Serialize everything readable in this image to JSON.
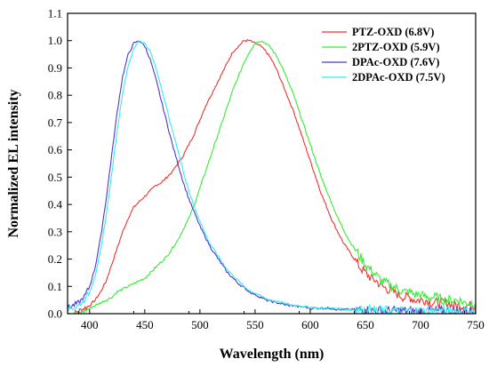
{
  "chart_data": {
    "type": "line",
    "title": "",
    "xlabel": "Wavelength (nm)",
    "ylabel": "Normalized EL intensity",
    "xlim": [
      380,
      750
    ],
    "ylim": [
      0.0,
      1.1
    ],
    "xticks": [
      400,
      450,
      500,
      550,
      600,
      650,
      700,
      750
    ],
    "yticks": [
      0.0,
      0.1,
      0.2,
      0.3,
      0.4,
      0.5,
      0.6,
      0.7,
      0.8,
      0.9,
      1.0,
      1.1
    ],
    "xtick_labels": [
      "400",
      "450",
      "500",
      "550",
      "600",
      "650",
      "700",
      "750"
    ],
    "ytick_labels": [
      "0.0",
      "0.1",
      "0.2",
      "0.3",
      "0.4",
      "0.5",
      "0.6",
      "0.7",
      "0.8",
      "0.9",
      "1.0",
      "1.1"
    ],
    "grid": false,
    "legend_position": "top-right",
    "series": [
      {
        "name": "PTZ-OXD (6.8V)",
        "color": "#ee3333",
        "x": [
          380,
          385,
          390,
          395,
          400,
          405,
          410,
          415,
          420,
          425,
          430,
          435,
          440,
          445,
          450,
          455,
          460,
          465,
          470,
          475,
          480,
          485,
          490,
          495,
          500,
          505,
          510,
          515,
          520,
          525,
          530,
          535,
          540,
          545,
          550,
          555,
          560,
          565,
          570,
          575,
          580,
          585,
          590,
          595,
          600,
          605,
          610,
          615,
          620,
          625,
          630,
          635,
          640,
          645,
          650,
          655,
          660,
          665,
          670,
          675,
          680,
          685,
          690,
          695,
          700,
          705,
          710,
          715,
          720,
          725,
          730,
          735,
          740,
          745,
          750
        ],
        "y": [
          0.0,
          0.0,
          0.01,
          0.02,
          0.03,
          0.05,
          0.08,
          0.12,
          0.18,
          0.24,
          0.3,
          0.35,
          0.39,
          0.41,
          0.43,
          0.45,
          0.47,
          0.48,
          0.5,
          0.52,
          0.55,
          0.58,
          0.62,
          0.66,
          0.71,
          0.76,
          0.8,
          0.84,
          0.88,
          0.92,
          0.96,
          0.98,
          1.0,
          1.0,
          0.99,
          0.98,
          0.96,
          0.93,
          0.89,
          0.84,
          0.79,
          0.74,
          0.68,
          0.62,
          0.56,
          0.5,
          0.44,
          0.39,
          0.34,
          0.3,
          0.26,
          0.23,
          0.2,
          0.17,
          0.15,
          0.13,
          0.12,
          0.1,
          0.09,
          0.08,
          0.07,
          0.06,
          0.06,
          0.05,
          0.05,
          0.05,
          0.04,
          0.04,
          0.04,
          0.04,
          0.03,
          0.03,
          0.03,
          0.03,
          0.03
        ]
      },
      {
        "name": "2PTZ-OXD (5.9V)",
        "color": "#33ee33",
        "x": [
          380,
          385,
          390,
          395,
          400,
          405,
          410,
          415,
          420,
          425,
          430,
          435,
          440,
          445,
          450,
          455,
          460,
          465,
          470,
          475,
          480,
          485,
          490,
          495,
          500,
          505,
          510,
          515,
          520,
          525,
          530,
          535,
          540,
          545,
          550,
          555,
          560,
          565,
          570,
          575,
          580,
          585,
          590,
          595,
          600,
          605,
          610,
          615,
          620,
          625,
          630,
          635,
          640,
          645,
          650,
          655,
          660,
          665,
          670,
          675,
          680,
          685,
          690,
          695,
          700,
          705,
          710,
          715,
          720,
          725,
          730,
          735,
          740,
          745,
          750
        ],
        "y": [
          0.0,
          0.0,
          0.0,
          0.01,
          0.02,
          0.03,
          0.04,
          0.05,
          0.06,
          0.08,
          0.09,
          0.1,
          0.11,
          0.12,
          0.13,
          0.15,
          0.17,
          0.19,
          0.21,
          0.24,
          0.27,
          0.31,
          0.35,
          0.4,
          0.46,
          0.52,
          0.58,
          0.64,
          0.7,
          0.76,
          0.82,
          0.87,
          0.92,
          0.96,
          0.99,
          1.0,
          0.99,
          0.97,
          0.94,
          0.9,
          0.85,
          0.8,
          0.74,
          0.68,
          0.62,
          0.56,
          0.5,
          0.45,
          0.4,
          0.35,
          0.31,
          0.27,
          0.24,
          0.21,
          0.18,
          0.16,
          0.14,
          0.12,
          0.11,
          0.1,
          0.09,
          0.08,
          0.08,
          0.07,
          0.07,
          0.06,
          0.06,
          0.06,
          0.05,
          0.05,
          0.05,
          0.05,
          0.04,
          0.04,
          0.04
        ]
      },
      {
        "name": "DPAc-OXD (7.6V)",
        "color": "#5533cc",
        "x": [
          380,
          385,
          390,
          395,
          400,
          405,
          410,
          415,
          420,
          425,
          430,
          435,
          440,
          445,
          450,
          455,
          460,
          465,
          470,
          475,
          480,
          485,
          490,
          495,
          500,
          505,
          510,
          515,
          520,
          525,
          530,
          535,
          540,
          545,
          550,
          555,
          560,
          565,
          570,
          575,
          580,
          585,
          590,
          595,
          600,
          605,
          610,
          615,
          620,
          625,
          630,
          635,
          640,
          645,
          650,
          655,
          660,
          665,
          670,
          675,
          680,
          685,
          690,
          695,
          700,
          705,
          710,
          715,
          720,
          725,
          730,
          735,
          740,
          745,
          750
        ],
        "y": [
          0.02,
          0.03,
          0.04,
          0.06,
          0.1,
          0.17,
          0.28,
          0.42,
          0.58,
          0.74,
          0.87,
          0.95,
          0.99,
          1.0,
          0.98,
          0.93,
          0.86,
          0.78,
          0.7,
          0.62,
          0.55,
          0.48,
          0.42,
          0.37,
          0.32,
          0.28,
          0.24,
          0.21,
          0.18,
          0.15,
          0.13,
          0.11,
          0.095,
          0.08,
          0.07,
          0.06,
          0.05,
          0.045,
          0.04,
          0.035,
          0.03,
          0.03,
          0.025,
          0.025,
          0.02,
          0.02,
          0.02,
          0.02,
          0.02,
          0.015,
          0.015,
          0.015,
          0.015,
          0.015,
          0.015,
          0.01,
          0.01,
          0.01,
          0.01,
          0.01,
          0.01,
          0.01,
          0.01,
          0.01,
          0.01,
          0.01,
          0.01,
          0.01,
          0.01,
          0.01,
          0.01,
          0.01,
          0.01,
          0.01,
          0.01
        ]
      },
      {
        "name": "2DPAc-OXD (7.5V)",
        "color": "#33eeee",
        "x": [
          380,
          385,
          390,
          395,
          400,
          405,
          410,
          415,
          420,
          425,
          430,
          435,
          440,
          445,
          450,
          455,
          460,
          465,
          470,
          475,
          480,
          485,
          490,
          495,
          500,
          505,
          510,
          515,
          520,
          525,
          530,
          535,
          540,
          545,
          550,
          555,
          560,
          565,
          570,
          575,
          580,
          585,
          590,
          595,
          600,
          605,
          610,
          615,
          620,
          625,
          630,
          635,
          640,
          645,
          650,
          655,
          660,
          665,
          670,
          675,
          680,
          685,
          690,
          695,
          700,
          705,
          710,
          715,
          720,
          725,
          730,
          735,
          740,
          745,
          750
        ],
        "y": [
          0.02,
          0.02,
          0.03,
          0.05,
          0.08,
          0.14,
          0.23,
          0.36,
          0.51,
          0.67,
          0.81,
          0.91,
          0.97,
          1.0,
          0.99,
          0.96,
          0.9,
          0.83,
          0.75,
          0.67,
          0.6,
          0.52,
          0.45,
          0.39,
          0.34,
          0.29,
          0.25,
          0.22,
          0.19,
          0.16,
          0.14,
          0.12,
          0.1,
          0.085,
          0.075,
          0.065,
          0.055,
          0.05,
          0.045,
          0.04,
          0.035,
          0.03,
          0.03,
          0.025,
          0.025,
          0.02,
          0.02,
          0.02,
          0.02,
          0.02,
          0.015,
          0.015,
          0.015,
          0.015,
          0.015,
          0.015,
          0.01,
          0.01,
          0.01,
          0.01,
          0.01,
          0.01,
          0.01,
          0.01,
          0.01,
          0.01,
          0.01,
          0.01,
          0.01,
          0.01,
          0.01,
          0.01,
          0.01,
          0.01,
          0.01
        ]
      }
    ]
  }
}
